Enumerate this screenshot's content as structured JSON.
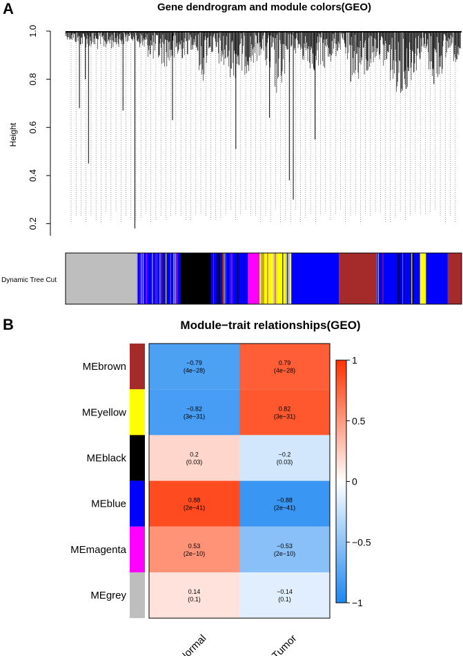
{
  "panel_a": {
    "letter": "A",
    "title": "Gene dendrogram and module colors(GEO)",
    "ylabel": "Height",
    "y_ticks": [
      "0.2",
      "0.4",
      "0.6",
      "0.8",
      "1.0"
    ],
    "color_bar_label": "Dynamic Tree Cut"
  },
  "panel_b": {
    "letter": "B",
    "title": "Module−trait relationships(GEO)"
  },
  "chart_data": [
    {
      "type": "dendrogram",
      "title": "Gene dendrogram and module colors(GEO)",
      "xlabel": "",
      "ylabel": "Height",
      "ylim": [
        0.15,
        1.0
      ],
      "y_ticks": [
        0.2,
        0.4,
        0.6,
        0.8,
        1.0
      ],
      "color_bar_label": "Dynamic Tree Cut",
      "module_segments": [
        {
          "module": "grey",
          "start": 0.0,
          "end": 0.18
        },
        {
          "module": "blue",
          "start": 0.18,
          "end": 0.29,
          "striped": true
        },
        {
          "module": "black",
          "start": 0.29,
          "end": 0.365
        },
        {
          "module": "blue",
          "start": 0.365,
          "end": 0.46,
          "striped": true
        },
        {
          "module": "magenta",
          "start": 0.46,
          "end": 0.49
        },
        {
          "module": "yellow",
          "start": 0.49,
          "end": 0.57,
          "striped": true
        },
        {
          "module": "blue",
          "start": 0.57,
          "end": 0.69
        },
        {
          "module": "brown",
          "start": 0.69,
          "end": 0.785
        },
        {
          "module": "blue",
          "start": 0.785,
          "end": 0.895,
          "striped": true
        },
        {
          "module": "yellow",
          "start": 0.895,
          "end": 0.91
        },
        {
          "module": "blue",
          "start": 0.91,
          "end": 0.965
        },
        {
          "module": "brown",
          "start": 0.965,
          "end": 1.0
        }
      ]
    },
    {
      "type": "heatmap",
      "title": "Module−trait relationships(GEO)",
      "rows": [
        "MEbrown",
        "MEyellow",
        "MEblack",
        "MEblue",
        "MEmagenta",
        "MEgrey"
      ],
      "row_colors": [
        "#a52a2a",
        "#ffff00",
        "#000000",
        "#0000ff",
        "#ff00ff",
        "#bebebe"
      ],
      "columns": [
        "Normal",
        "Tumor"
      ],
      "values": [
        [
          -0.79,
          0.79
        ],
        [
          -0.82,
          0.82
        ],
        [
          0.2,
          -0.2
        ],
        [
          0.88,
          -0.88
        ],
        [
          0.53,
          -0.53
        ],
        [
          0.14,
          -0.14
        ]
      ],
      "cell_labels": [
        [
          [
            "−0.79",
            "(4e−28)"
          ],
          [
            "0.79",
            "(4e−28)"
          ]
        ],
        [
          [
            "−0.82",
            "(3e−31)"
          ],
          [
            "0.82",
            "(3e−31)"
          ]
        ],
        [
          [
            "0.2",
            "(0.03)"
          ],
          [
            "−0.2",
            "(0.03)"
          ]
        ],
        [
          [
            "0.88",
            "(2e−41)"
          ],
          [
            "−0.88",
            "(2e−41)"
          ]
        ],
        [
          [
            "0.53",
            "(2e−10)"
          ],
          [
            "−0.53",
            "(2e−10)"
          ]
        ],
        [
          [
            "0.14",
            "(0.1)"
          ],
          [
            "−0.14",
            "(0.1)"
          ]
        ]
      ],
      "color_scale": {
        "min": -1,
        "max": 1,
        "low": "#1e88f0",
        "mid": "#ffffff",
        "high": "#ff3300"
      },
      "legend_ticks": [
        "1",
        "0.5",
        "0",
        "−0.5",
        "−1"
      ],
      "legend_tick_values": [
        1,
        0.5,
        0,
        -0.5,
        -1
      ]
    }
  ],
  "colors": {
    "grey": "#bebebe",
    "blue": "#0000ff",
    "black": "#000000",
    "magenta": "#ff00ff",
    "yellow": "#ffff00",
    "brown": "#a52a2a"
  }
}
